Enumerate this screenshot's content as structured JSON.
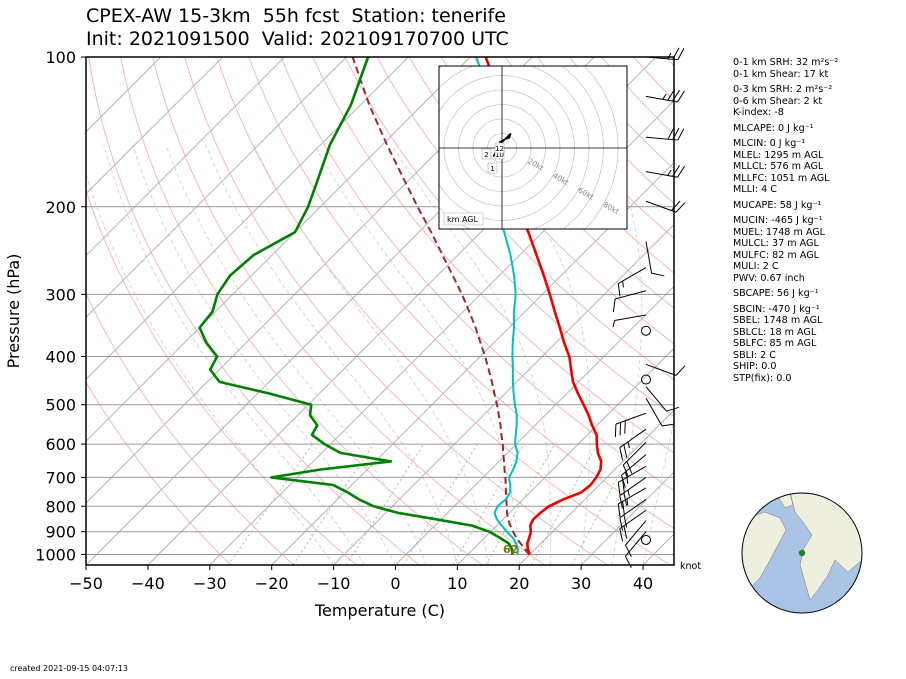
{
  "header": {
    "title_line1": "CPEX-AW 15-3km  55h fcst  Station: tenerife",
    "title_line2": "Init: 2021091500  Valid: 202109170700 UTC"
  },
  "footer": {
    "created": "created 2021-09-15 04:07:13"
  },
  "indices": [
    {
      "text": "0-1 km SRH: 32 m²s⁻²"
    },
    {
      "text": "0-1 km Shear: 17 kt"
    },
    {
      "text": "0-3 km SRH: 2 m²s⁻²"
    },
    {
      "text": "0-6 km Shear: 2 kt"
    },
    {
      "text": "K-index: -8"
    },
    {
      "text": "MLCAPE: 0 J kg⁻¹"
    },
    {
      "text": "MLCIN: 0 J kg⁻¹"
    },
    {
      "text": "MLEL: 1295 m AGL"
    },
    {
      "text": "MLLCL: 576 m AGL"
    },
    {
      "text": "MLLFC: 1051 m AGL"
    },
    {
      "text": "MLLI: 4 C"
    },
    {
      "text": "MUCAPE: 58 J kg⁻¹"
    },
    {
      "text": "MUCIN: -465 J kg⁻¹"
    },
    {
      "text": "MUEL: 1748 m AGL"
    },
    {
      "text": "MULCL: 37 m AGL"
    },
    {
      "text": "MULFC: 82 m AGL"
    },
    {
      "text": "MULI: 2 C"
    },
    {
      "text": "PWV: 0.67 inch"
    },
    {
      "text": "SBCAPE: 56 J kg⁻¹"
    },
    {
      "text": "SBCIN: -470 J kg⁻¹"
    },
    {
      "text": "SBEL: 1748 m AGL"
    },
    {
      "text": "SBLCL: 18 m AGL"
    },
    {
      "text": "SBLFC: 85 m AGL"
    },
    {
      "text": "SBLI: 2 C"
    },
    {
      "text": "SHIP: 0.0"
    },
    {
      "text": "STP(fix): 0.0"
    }
  ],
  "chart_data": [
    {
      "type": "line",
      "subtype": "skew-T log-P sounding",
      "xlabel": "Temperature (C)",
      "ylabel": "Pressure (hPa)",
      "xlim": [
        -50,
        45
      ],
      "ylim": [
        1050,
        100
      ],
      "y_scale": "log",
      "x_ticks": [
        -50,
        -40,
        -30,
        -20,
        -10,
        0,
        10,
        20,
        30,
        40
      ],
      "y_ticks": [
        100,
        200,
        300,
        400,
        500,
        600,
        700,
        800,
        900,
        1000
      ],
      "x_tick_labels": [
        "−50",
        "−40",
        "−30",
        "−20",
        "−10",
        "0",
        "10",
        "20",
        "30",
        "40"
      ],
      "y_tick_labels": [
        "100",
        "200",
        "300",
        "400",
        "500",
        "600",
        "700",
        "800",
        "900",
        "1000"
      ],
      "wind_unit_label": "knot",
      "surface_labels": [
        {
          "text": "62",
          "color": "#8a6d00"
        }
      ],
      "colors": {
        "temperature": "#ee0000",
        "dewpoint": "#008000",
        "wetbulb": "#00bfbf",
        "parcel": "#9b2a2a",
        "isotherm": "#b4b4b4",
        "dry_adiabat": "#f6b8b8",
        "moist_adiabat": "#d2d2d2",
        "mixing_ratio": "#8fd18f"
      },
      "series": [
        {
          "key": "temperature",
          "points": [
            [
              1000,
              20.0
            ],
            [
              975,
              18.8
            ],
            [
              950,
              17.8
            ],
            [
              925,
              17.2
            ],
            [
              900,
              16.5
            ],
            [
              875,
              15.4
            ],
            [
              850,
              14.9
            ],
            [
              825,
              15.0
            ],
            [
              800,
              15.3
            ],
            [
              775,
              16.5
            ],
            [
              750,
              18.3
            ],
            [
              725,
              18.6
            ],
            [
              700,
              18.3
            ],
            [
              675,
              17.7
            ],
            [
              650,
              16.5
            ],
            [
              625,
              14.6
            ],
            [
              600,
              13.0
            ],
            [
              575,
              11.5
            ],
            [
              550,
              9.2
            ],
            [
              525,
              7.0
            ],
            [
              500,
              4.5
            ],
            [
              475,
              1.8
            ],
            [
              450,
              -0.9
            ],
            [
              425,
              -3.2
            ],
            [
              400,
              -5.6
            ],
            [
              375,
              -8.7
            ],
            [
              350,
              -11.8
            ],
            [
              325,
              -15.2
            ],
            [
              300,
              -18.8
            ],
            [
              275,
              -22.8
            ],
            [
              250,
              -27.3
            ],
            [
              225,
              -32.3
            ],
            [
              200,
              -38.2
            ],
            [
              175,
              -44.2
            ],
            [
              150,
              -50.5
            ],
            [
              125,
              -57.0
            ],
            [
              115,
              -60.8
            ],
            [
              100,
              -67.5
            ]
          ]
        },
        {
          "key": "dewpoint",
          "points": [
            [
              1000,
              17.2
            ],
            [
              975,
              16.2
            ],
            [
              950,
              14.8
            ],
            [
              925,
              12.4
            ],
            [
              900,
              9.8
            ],
            [
              875,
              6.0
            ],
            [
              850,
              -0.8
            ],
            [
              825,
              -8.0
            ],
            [
              800,
              -13.0
            ],
            [
              775,
              -16.5
            ],
            [
              750,
              -19.5
            ],
            [
              725,
              -23.0
            ],
            [
              700,
              -34.2
            ],
            [
              675,
              -27.5
            ],
            [
              650,
              -17.5
            ],
            [
              625,
              -27.0
            ],
            [
              600,
              -31.0
            ],
            [
              575,
              -34.5
            ],
            [
              550,
              -35.2
            ],
            [
              525,
              -38.0
            ],
            [
              500,
              -39.5
            ],
            [
              475,
              -48.0
            ],
            [
              450,
              -58.0
            ],
            [
              425,
              -61.5
            ],
            [
              400,
              -62.5
            ],
            [
              375,
              -66.5
            ],
            [
              350,
              -70.0
            ],
            [
              325,
              -70.5
            ],
            [
              300,
              -72.5
            ],
            [
              275,
              -73.5
            ],
            [
              250,
              -73.0
            ],
            [
              225,
              -70.0
            ],
            [
              200,
              -72.0
            ],
            [
              175,
              -75.0
            ],
            [
              150,
              -78.5
            ],
            [
              125,
              -81.5
            ],
            [
              100,
              -86.5
            ]
          ]
        },
        {
          "key": "wetbulb",
          "points": [
            [
              1000,
              18.0
            ],
            [
              975,
              17.2
            ],
            [
              950,
              16.0
            ],
            [
              925,
              14.5
            ],
            [
              900,
              12.6
            ],
            [
              875,
              10.8
            ],
            [
              850,
              9.0
            ],
            [
              825,
              7.6
            ],
            [
              800,
              7.0
            ],
            [
              775,
              7.2
            ],
            [
              750,
              6.8
            ],
            [
              725,
              5.6
            ],
            [
              700,
              4.2
            ],
            [
              675,
              3.6
            ],
            [
              650,
              2.8
            ],
            [
              625,
              1.6
            ],
            [
              600,
              -0.2
            ],
            [
              575,
              -1.6
            ],
            [
              550,
              -3.0
            ],
            [
              525,
              -4.6
            ],
            [
              500,
              -6.6
            ],
            [
              475,
              -8.6
            ],
            [
              450,
              -10.6
            ],
            [
              425,
              -12.6
            ],
            [
              400,
              -14.8
            ],
            [
              375,
              -17.0
            ],
            [
              350,
              -19.2
            ],
            [
              325,
              -21.8
            ],
            [
              300,
              -24.3
            ],
            [
              275,
              -27.6
            ],
            [
              250,
              -31.5
            ],
            [
              225,
              -36.2
            ],
            [
              200,
              -41.5
            ],
            [
              175,
              -47.5
            ],
            [
              150,
              -53.5
            ],
            [
              125,
              -59.5
            ],
            [
              115,
              -62.5
            ],
            [
              100,
              -69.0
            ]
          ]
        },
        {
          "key": "parcel",
          "points": [
            [
              1000,
              19.9
            ],
            [
              975,
              18.3
            ],
            [
              950,
              16.7
            ],
            [
              925,
              15.1
            ],
            [
              900,
              13.6
            ],
            [
              875,
              12.2
            ],
            [
              850,
              10.8
            ],
            [
              825,
              9.6
            ],
            [
              800,
              8.5
            ],
            [
              775,
              7.3
            ],
            [
              750,
              6.1
            ],
            [
              725,
              4.9
            ],
            [
              700,
              3.6
            ],
            [
              675,
              2.2
            ],
            [
              650,
              0.8
            ],
            [
              625,
              -0.7
            ],
            [
              600,
              -2.2
            ],
            [
              575,
              -3.9
            ],
            [
              550,
              -5.6
            ],
            [
              525,
              -7.5
            ],
            [
              500,
              -9.5
            ],
            [
              475,
              -11.7
            ],
            [
              450,
              -14.0
            ],
            [
              425,
              -16.5
            ],
            [
              400,
              -19.2
            ],
            [
              375,
              -22.2
            ],
            [
              350,
              -25.4
            ],
            [
              325,
              -29.0
            ],
            [
              300,
              -33.0
            ],
            [
              275,
              -37.5
            ],
            [
              250,
              -42.5
            ],
            [
              225,
              -48.0
            ],
            [
              200,
              -54.3
            ],
            [
              175,
              -61.3
            ],
            [
              150,
              -69.3
            ],
            [
              125,
              -78.5
            ],
            [
              100,
              -89.0
            ]
          ]
        }
      ],
      "wind_barbs": [
        {
          "p": 100,
          "spd": 25,
          "dir": 275
        },
        {
          "p": 120,
          "spd": 35,
          "dir": 280
        },
        {
          "p": 145,
          "spd": 30,
          "dir": 275
        },
        {
          "p": 170,
          "spd": 25,
          "dir": 280
        },
        {
          "p": 195,
          "spd": 20,
          "dir": 290
        },
        {
          "p": 235,
          "spd": 10,
          "dir": 350
        },
        {
          "p": 265,
          "spd": 15,
          "dir": 60
        },
        {
          "p": 295,
          "spd": 10,
          "dir": 75
        },
        {
          "p": 330,
          "spd": 5,
          "dir": 80
        },
        {
          "p": 355,
          "spd": 0,
          "dir": 0
        },
        {
          "p": 415,
          "spd": 10,
          "dir": 290
        },
        {
          "p": 445,
          "spd": 0,
          "dir": 0
        },
        {
          "p": 460,
          "spd": 10,
          "dir": 320
        },
        {
          "p": 485,
          "spd": 10,
          "dir": 330
        },
        {
          "p": 520,
          "spd": 30,
          "dir": 70
        },
        {
          "p": 560,
          "spd": 25,
          "dir": 55
        },
        {
          "p": 595,
          "spd": 20,
          "dir": 45
        },
        {
          "p": 630,
          "spd": 15,
          "dir": 50
        },
        {
          "p": 665,
          "spd": 25,
          "dir": 60
        },
        {
          "p": 700,
          "spd": 25,
          "dir": 55
        },
        {
          "p": 735,
          "spd": 25,
          "dir": 60
        },
        {
          "p": 775,
          "spd": 20,
          "dir": 55
        },
        {
          "p": 815,
          "spd": 20,
          "dir": 55
        },
        {
          "p": 855,
          "spd": 10,
          "dir": 40
        },
        {
          "p": 900,
          "spd": 10,
          "dir": 40
        },
        {
          "p": 935,
          "spd": 0,
          "dir": 0
        }
      ]
    },
    {
      "type": "line",
      "subtype": "hodograph",
      "unit_label": "km AGL",
      "ring_labels": [
        "20kt",
        "40kt",
        "60kt",
        "80kt"
      ],
      "rings_kt": [
        10,
        20,
        30,
        40,
        50,
        60,
        70,
        80
      ],
      "points_kt": [
        [
          -2,
          4
        ],
        [
          0,
          5
        ],
        [
          2,
          6
        ],
        [
          5,
          7
        ],
        [
          6,
          10
        ],
        [
          4,
          8
        ],
        [
          2,
          6
        ],
        [
          0,
          4
        ],
        [
          -2,
          2
        ],
        [
          -4,
          -2
        ],
        [
          -6,
          -6
        ]
      ],
      "height_labels": [
        "1",
        "2",
        "10",
        "12"
      ]
    },
    {
      "type": "map",
      "subtype": "globe locator",
      "station_marker_color": "#1a8a1a",
      "ocean_color": "#a9c4e4",
      "land_color": "#efefdf"
    }
  ]
}
